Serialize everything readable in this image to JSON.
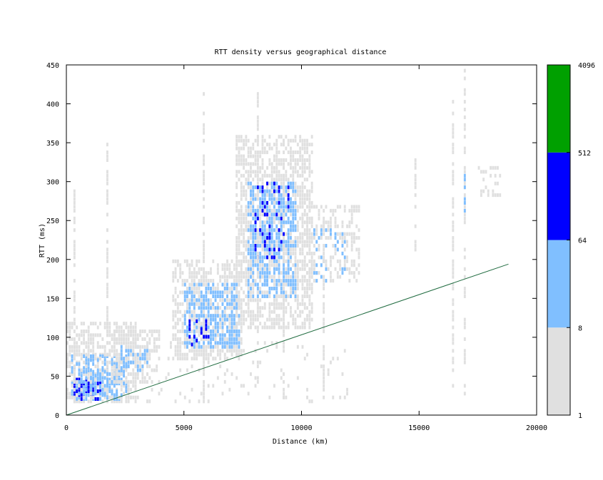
{
  "chart_data": {
    "type": "heatmap",
    "title": "RTT density versus geographical distance",
    "xlabel": "Distance (km)",
    "ylabel": "RTT (ms)",
    "xlim": [
      0,
      20000
    ],
    "ylim": [
      0,
      450
    ],
    "x_ticks": [
      0,
      5000,
      10000,
      15000,
      20000
    ],
    "y_ticks": [
      0,
      50,
      100,
      150,
      200,
      250,
      300,
      350,
      400,
      450
    ],
    "grid": false,
    "cell_size": {
      "x_km": 100,
      "y_ms": 5
    },
    "colorbar": {
      "scale": "log2",
      "tick_labels": [
        "1",
        "8",
        "64",
        "512",
        "4096"
      ],
      "bins": [
        {
          "from": 1,
          "to": 8,
          "color": "#e0e0e0"
        },
        {
          "from": 8,
          "to": 64,
          "color": "#80bfff"
        },
        {
          "from": 64,
          "to": 512,
          "color": "#0000ff"
        },
        {
          "from": 512,
          "to": 4096,
          "color": "#00a000"
        }
      ]
    },
    "reference_line": {
      "color": "#1f6b3f",
      "points": [
        [
          0,
          0
        ],
        [
          18800,
          194
        ]
      ]
    },
    "density_clusters": [
      {
        "x": [
          0,
          3000
        ],
        "y": [
          15,
          120
        ],
        "level": 1,
        "fill": 0.55
      },
      {
        "x": [
          200,
          2600
        ],
        "y": [
          18,
          75
        ],
        "level": 2,
        "fill": 0.55
      },
      {
        "x": [
          300,
          1500
        ],
        "y": [
          18,
          45
        ],
        "level": 3,
        "fill": 0.35
      },
      {
        "x": [
          500,
          2200
        ],
        "y": [
          25,
          60
        ],
        "level": 2,
        "fill": 0.4
      },
      {
        "x": [
          2000,
          4000
        ],
        "y": [
          40,
          110
        ],
        "level": 1,
        "fill": 0.5
      },
      {
        "x": [
          2300,
          3500
        ],
        "y": [
          55,
          90
        ],
        "level": 2,
        "fill": 0.35
      },
      {
        "x": [
          4500,
          7500
        ],
        "y": [
          70,
          200
        ],
        "level": 1,
        "fill": 0.6
      },
      {
        "x": [
          5000,
          7400
        ],
        "y": [
          85,
          170
        ],
        "level": 2,
        "fill": 0.55
      },
      {
        "x": [
          5200,
          6100
        ],
        "y": [
          88,
          120
        ],
        "level": 3,
        "fill": 0.22
      },
      {
        "x": [
          7200,
          10500
        ],
        "y": [
          110,
          360
        ],
        "level": 1,
        "fill": 0.6
      },
      {
        "x": [
          7700,
          9800
        ],
        "y": [
          150,
          300
        ],
        "level": 2,
        "fill": 0.55
      },
      {
        "x": [
          8000,
          9500
        ],
        "y": [
          200,
          300
        ],
        "level": 3,
        "fill": 0.12
      },
      {
        "x": [
          10000,
          12500
        ],
        "y": [
          170,
          270
        ],
        "level": 1,
        "fill": 0.35
      },
      {
        "x": [
          10500,
          11900
        ],
        "y": [
          170,
          240
        ],
        "level": 2,
        "fill": 0.15
      },
      {
        "x": [
          0,
          12000
        ],
        "y": [
          15,
          100
        ],
        "level": 1,
        "fill": 0.06
      },
      {
        "x": [
          17500,
          18500
        ],
        "y": [
          280,
          320
        ],
        "level": 1,
        "fill": 0.3
      }
    ],
    "vertical_streaks": [
      {
        "x": 300,
        "y": [
          15,
          300
        ],
        "level": 1
      },
      {
        "x": 1700,
        "y": [
          15,
          350
        ],
        "level": 1
      },
      {
        "x": 5800,
        "y": [
          15,
          420
        ],
        "level": 1
      },
      {
        "x": 8100,
        "y": [
          15,
          420
        ],
        "level": 1
      },
      {
        "x": 9200,
        "y": [
          15,
          360
        ],
        "level": 1
      },
      {
        "x": 10900,
        "y": [
          15,
          260
        ],
        "level": 1
      },
      {
        "x": 14800,
        "y": [
          210,
          330
        ],
        "level": 1
      },
      {
        "x": 16400,
        "y": [
          25,
          410
        ],
        "level": 1
      },
      {
        "x": 16900,
        "y": [
          25,
          450
        ],
        "level": 1
      },
      {
        "x": 16900,
        "y": [
          260,
          320
        ],
        "level": 2
      }
    ]
  }
}
